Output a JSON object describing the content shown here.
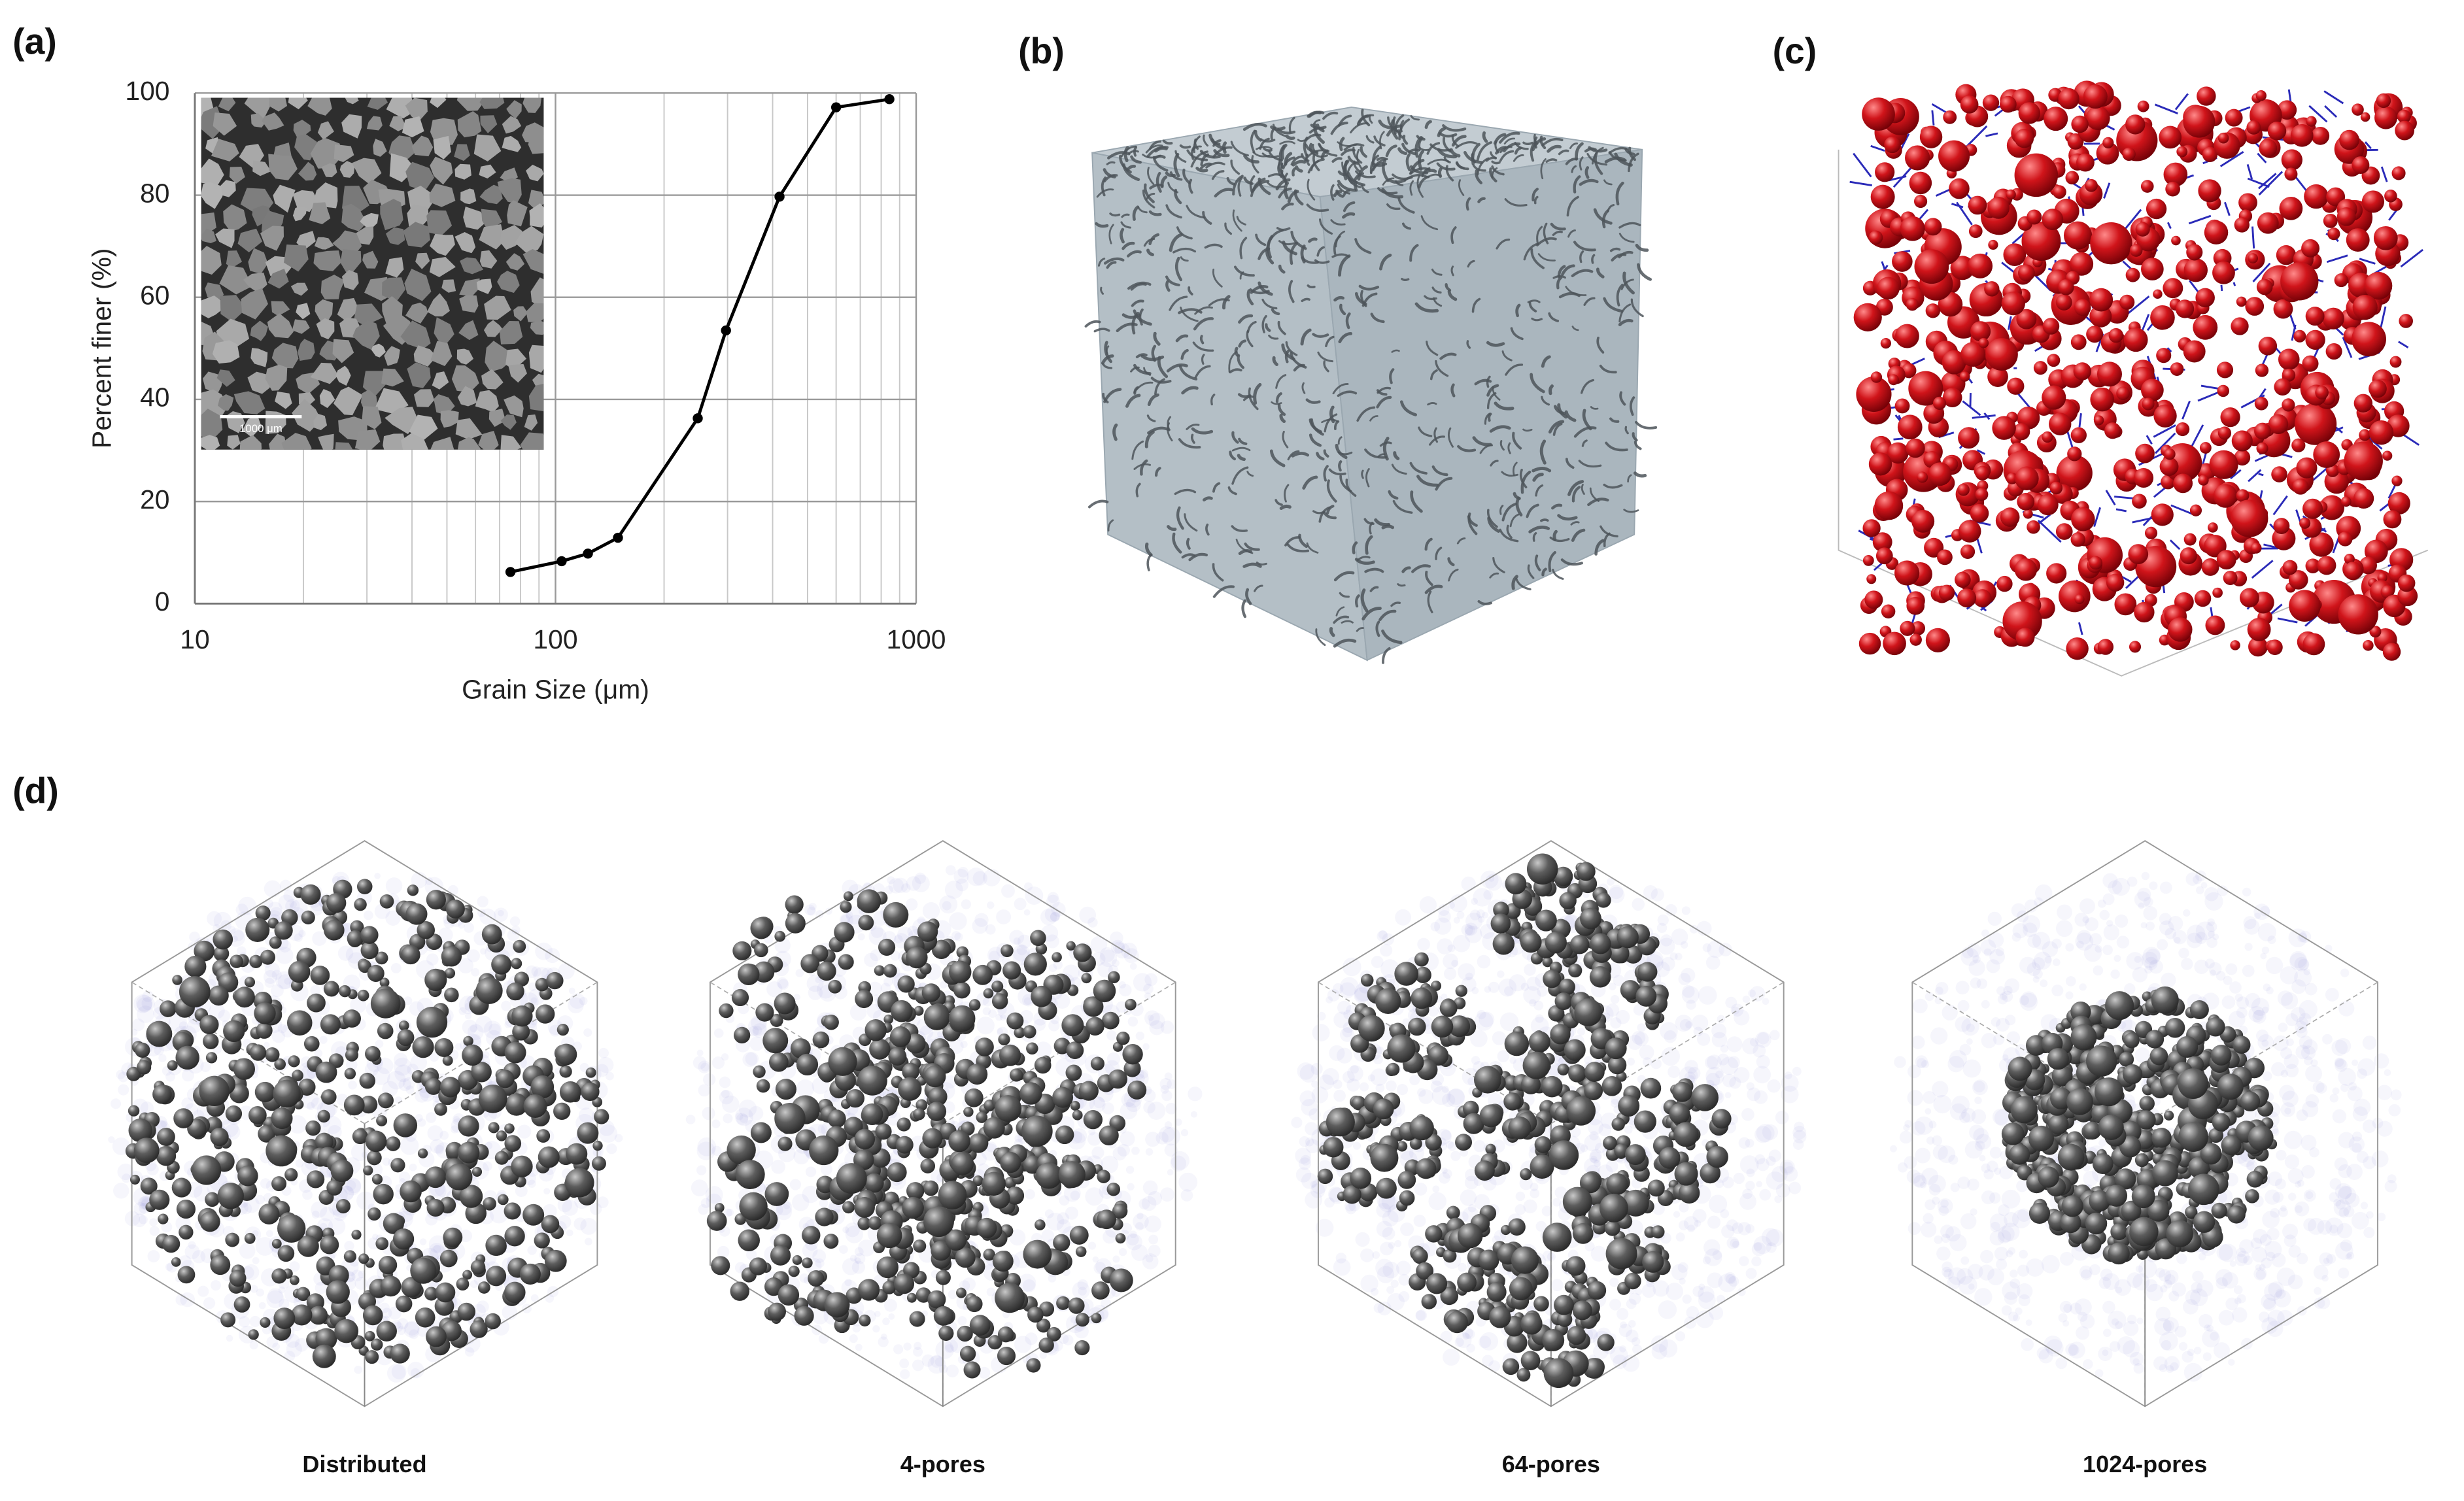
{
  "panel_labels": [
    "(a)",
    "(b)",
    "(c)",
    "(d)"
  ],
  "captions": [
    "Distributed",
    "4-pores",
    "64-pores",
    "1024-pores"
  ],
  "chart_data": {
    "type": "line",
    "x_label": "Grain Size (μm)",
    "y_label": "Percent finer (%)",
    "inset_scale": "1000 μm",
    "x": [
      75,
      104,
      123,
      149,
      248,
      297,
      418,
      600,
      843
    ],
    "values": [
      6.2,
      8.3,
      9.8,
      12.9,
      36.3,
      53.5,
      79.7,
      97.2,
      98.8
    ],
    "color": "#000000",
    "xscale": "log",
    "xlim": [
      10,
      1000
    ],
    "ylim": [
      0,
      100
    ],
    "xticks": [
      10,
      100,
      1000
    ],
    "yticks": [
      0,
      20,
      40,
      60,
      80,
      100
    ],
    "xminorticks": [
      20,
      30,
      40,
      50,
      60,
      70,
      80,
      90,
      200,
      300,
      400,
      500,
      600,
      700,
      800,
      900
    ],
    "grid": true
  }
}
